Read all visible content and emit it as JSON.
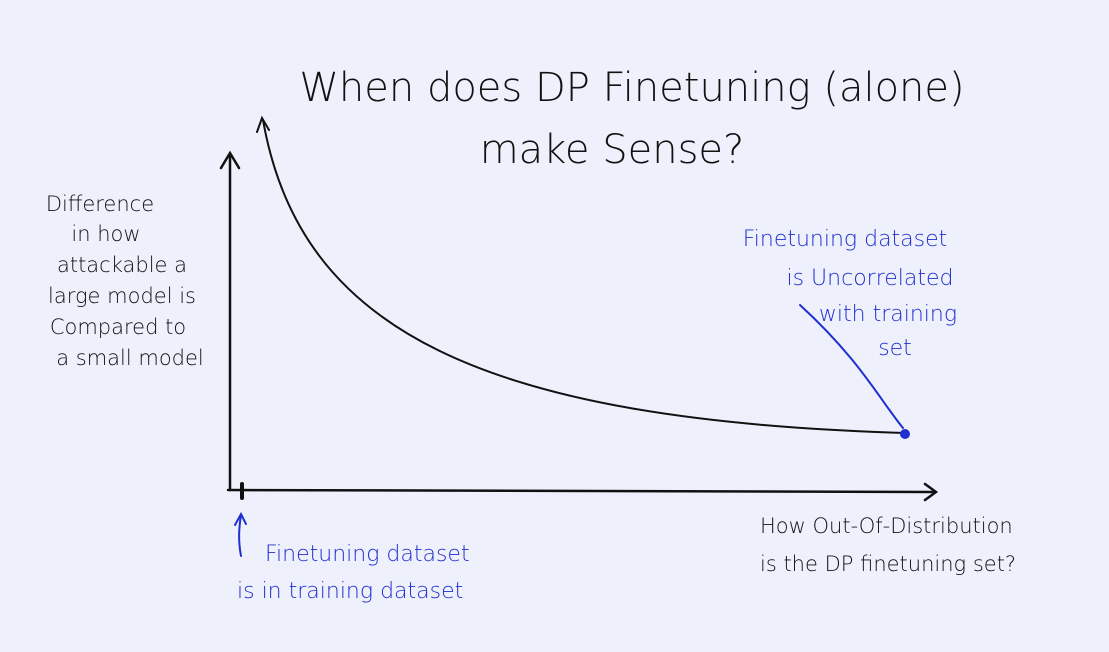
{
  "title": {
    "lines": [
      "When does DP Finetuning (alone)",
      "make Sense?"
    ]
  },
  "y_axis_label": {
    "lines": [
      "Difference",
      "in how",
      "attackable a",
      "large model is",
      "Compared to",
      "a small model"
    ]
  },
  "x_axis_label": {
    "lines": [
      "How Out-Of-Distribution",
      "is the DP finetuning set?"
    ]
  },
  "annotations": [
    {
      "lines": [
        "Finetuning dataset",
        "is Uncorrelated",
        "with training",
        "set"
      ]
    },
    {
      "lines": [
        "Finetuning dataset",
        "is in training dataset"
      ]
    }
  ]
}
